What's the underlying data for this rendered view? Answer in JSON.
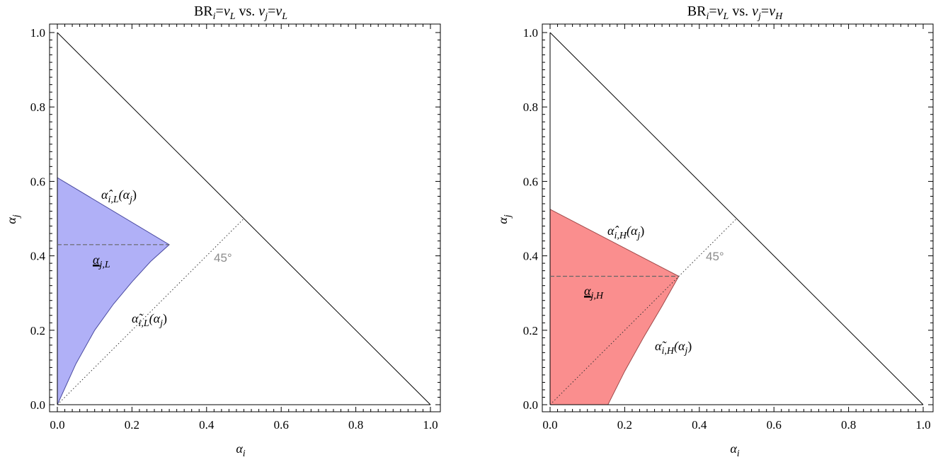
{
  "chart_data": [
    {
      "type": "area",
      "title": "BRᵢ=vʟ vs. vⱼ=vʟ",
      "title_parts": {
        "prefix": "BR",
        "sub_i": "i",
        "eq": "=",
        "v": "v",
        "sub_L": "L",
        "vs": " vs. ",
        "v2": "v",
        "sub_j": "j",
        "eq2": "=",
        "v3": "v",
        "sub_L2": "L"
      },
      "xlabel": "α",
      "xlabel_sub": "i",
      "ylabel": "α",
      "ylabel_sub": "j",
      "xlim": [
        0,
        1
      ],
      "ylim": [
        0,
        1
      ],
      "x_ticks": [
        "0.0",
        "0.2",
        "0.4",
        "0.6",
        "0.8",
        "1.0"
      ],
      "y_ticks": [
        "0.0",
        "0.2",
        "0.4",
        "0.6",
        "0.8",
        "1.0"
      ],
      "fill_color": "#b0b0f7",
      "edge_color": "#4a4aa0",
      "region_upper": {
        "x": [
          0,
          0.3
        ],
        "y": [
          0.61,
          0.43
        ]
      },
      "region_lower": {
        "x": [
          0,
          0.05,
          0.1,
          0.15,
          0.2,
          0.25,
          0.3
        ],
        "y": [
          0,
          0.11,
          0.2,
          0.27,
          0.33,
          0.385,
          0.43
        ]
      },
      "threshold": {
        "y": 0.43,
        "x": [
          0,
          0.3
        ],
        "label": "α",
        "label_sub": "j,L"
      },
      "diagonal": {
        "x": [
          0,
          0.5
        ],
        "y": [
          0,
          0.5
        ],
        "label": "45°"
      },
      "boundary": {
        "x": [
          0,
          1
        ],
        "y": [
          1,
          0
        ]
      },
      "annotations": [
        {
          "hat": "α̂",
          "sub": "i,L",
          "arg": "(α",
          "arg_sub": "j",
          "close": ")"
        },
        {
          "tilde": "α̃",
          "sub": "i,L",
          "arg": "(α",
          "arg_sub": "j",
          "close": ")"
        }
      ]
    },
    {
      "type": "area",
      "title": "BRᵢ=vʟ vs. vⱼ=vʜ",
      "title_parts": {
        "prefix": "BR",
        "sub_i": "i",
        "eq": "=",
        "v": "v",
        "sub_L": "L",
        "vs": " vs. ",
        "v2": "v",
        "sub_j": "j",
        "eq2": "=",
        "v3": "v",
        "sub_H": "H"
      },
      "xlabel": "α",
      "xlabel_sub": "i",
      "ylabel": "α",
      "ylabel_sub": "j",
      "xlim": [
        0,
        1
      ],
      "ylim": [
        0,
        1
      ],
      "x_ticks": [
        "0.0",
        "0.2",
        "0.4",
        "0.6",
        "0.8",
        "1.0"
      ],
      "y_ticks": [
        "0.0",
        "0.2",
        "0.4",
        "0.6",
        "0.8",
        "1.0"
      ],
      "fill_color": "#fa8e8e",
      "edge_color": "#a04a4a",
      "region_upper": {
        "x": [
          0,
          0.345
        ],
        "y": [
          0.525,
          0.345
        ]
      },
      "region_lower": {
        "x": [
          0.155,
          0.2,
          0.25,
          0.3,
          0.345
        ],
        "y": [
          0,
          0.09,
          0.18,
          0.265,
          0.345
        ]
      },
      "threshold": {
        "y": 0.345,
        "x": [
          0,
          0.345
        ],
        "label": "α",
        "label_sub": "j,H"
      },
      "diagonal": {
        "x": [
          0,
          0.5
        ],
        "y": [
          0,
          0.5
        ],
        "label": "45°"
      },
      "boundary": {
        "x": [
          0,
          1
        ],
        "y": [
          1,
          0
        ]
      },
      "annotations": [
        {
          "hat": "α̂",
          "sub": "i,H",
          "arg": "(α",
          "arg_sub": "j",
          "close": ")"
        },
        {
          "tilde": "α̃",
          "sub": "i,H",
          "arg": "(α",
          "arg_sub": "j",
          "close": ")"
        }
      ]
    }
  ]
}
